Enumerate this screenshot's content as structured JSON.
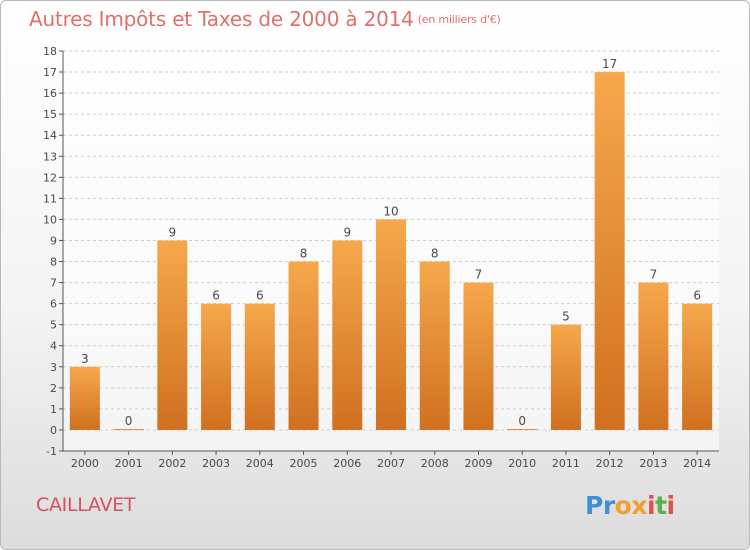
{
  "title": "Autres Impôts et Taxes de 2000 à 2014",
  "title_unit": "(en milliers d'€)",
  "town": "CAILLAVET",
  "logo": {
    "text": "Proxiti",
    "letters": [
      "P",
      "r",
      "o",
      "x",
      "i",
      "t",
      "i"
    ],
    "colors": [
      "#3f8fd6",
      "#3f8fd6",
      "#f0a030",
      "#f0a030",
      "#e05050",
      "#5ab04a",
      "#e05050"
    ]
  },
  "colors": {
    "bar_light": "#f6a84c",
    "bar_dark": "#d07020",
    "grid": "#cccccc",
    "title": "#e0706a",
    "town": "#d84f60"
  },
  "chart_data": {
    "type": "bar",
    "title": "Autres Impôts et Taxes de 2000 à 2014",
    "subtitle": "(en milliers d'€)",
    "xlabel": "",
    "ylabel": "",
    "categories": [
      "2000",
      "2001",
      "2002",
      "2003",
      "2004",
      "2005",
      "2006",
      "2007",
      "2008",
      "2009",
      "2010",
      "2011",
      "2012",
      "2013",
      "2014"
    ],
    "values": [
      3,
      0,
      9,
      6,
      6,
      8,
      9,
      10,
      8,
      7,
      0,
      5,
      17,
      7,
      6
    ],
    "ylim": [
      -1,
      18
    ],
    "yticks": [
      "-1",
      "0",
      "1",
      "2",
      "3",
      "4",
      "5",
      "6",
      "7",
      "8",
      "9",
      "10",
      "11",
      "12",
      "13",
      "14",
      "15",
      "16",
      "17",
      "18"
    ],
    "grid": "horizontal dashed"
  }
}
